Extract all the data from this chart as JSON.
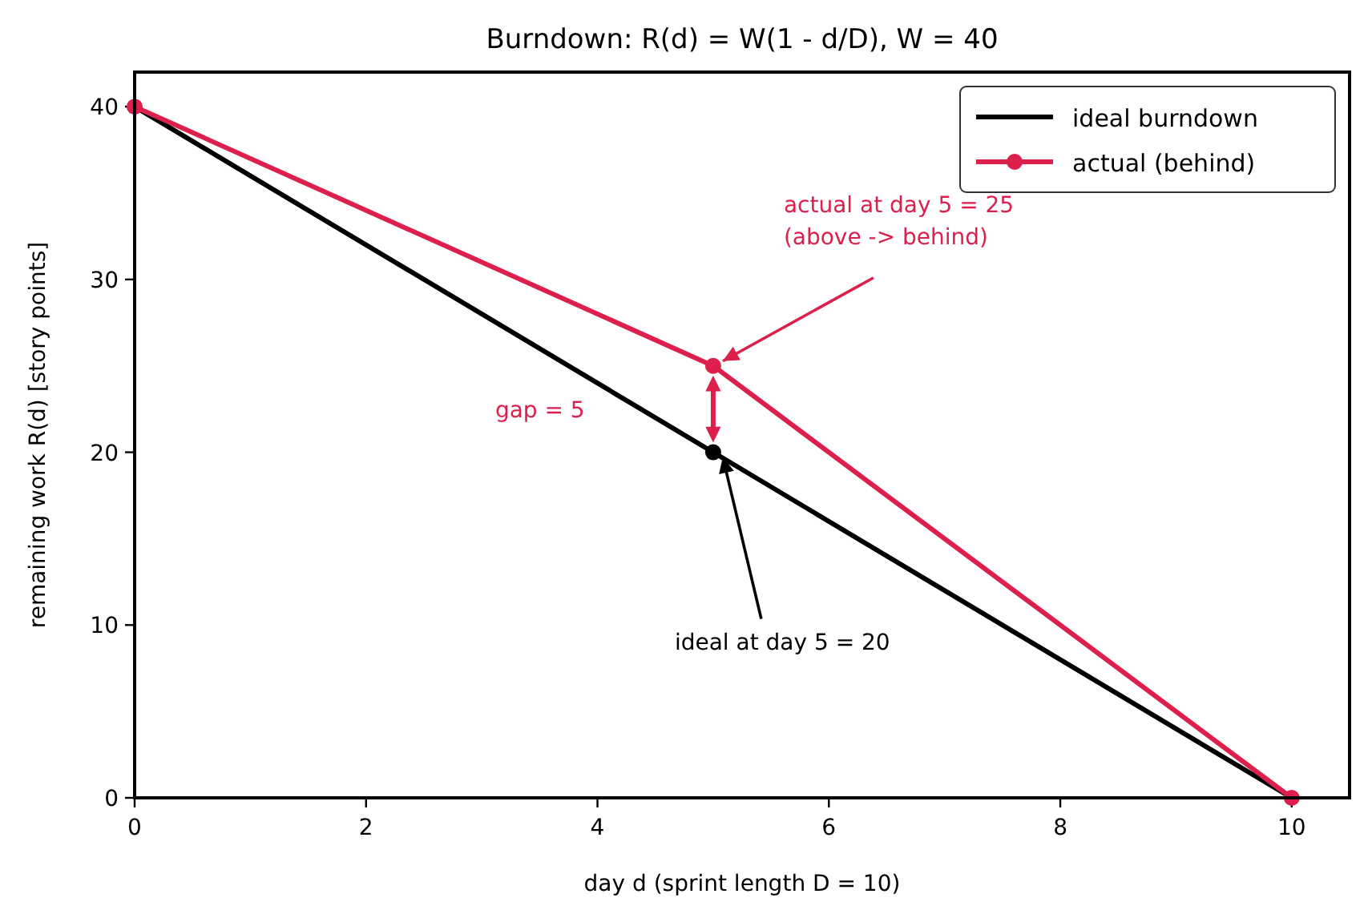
{
  "chart_data": {
    "type": "line",
    "title": "Burndown: R(d) = W(1 - d/D),  W = 40",
    "xlabel": "day  d  (sprint length D = 10)",
    "ylabel": "remaining work  R(d)  [story points]",
    "xlim": [
      0,
      10.5
    ],
    "ylim": [
      0,
      42
    ],
    "xticks": [
      0,
      2,
      4,
      6,
      8,
      10
    ],
    "yticks": [
      0,
      10,
      20,
      30,
      40
    ],
    "grid": false,
    "legend": "top right",
    "line_style": "solid",
    "series": [
      {
        "name": "ideal burndown",
        "color": "#000000",
        "marker": "none",
        "x": [
          0,
          10
        ],
        "values": [
          40,
          0
        ]
      },
      {
        "name": "actual (behind)",
        "color": "#dc1f4b",
        "marker": "circle",
        "x": [
          0,
          5,
          10
        ],
        "values": [
          40,
          25,
          0
        ]
      },
      {
        "type": "scatter",
        "color": "#000000",
        "marker": "circle",
        "x": [
          5
        ],
        "values": [
          20
        ]
      }
    ],
    "annotations": [
      {
        "text": "actual at day 5 = 25\n(above -> behind)",
        "x": 5,
        "y": 25
      },
      {
        "text": "ideal at day 5 = 20",
        "x": 5,
        "y": 20
      },
      "gap = 5"
    ]
  }
}
